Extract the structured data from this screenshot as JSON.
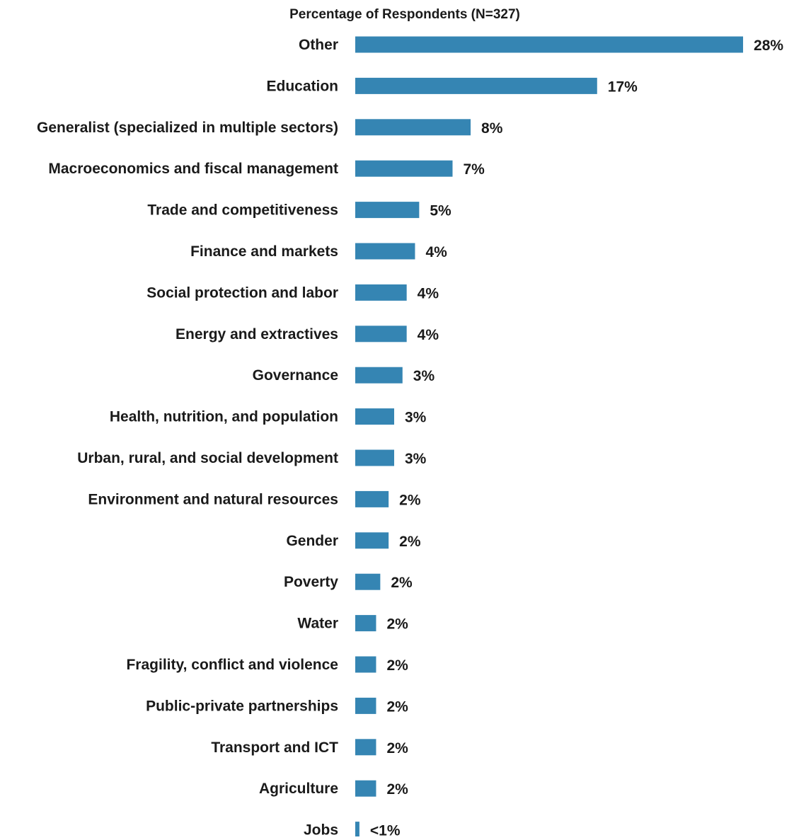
{
  "chart_data": {
    "type": "bar",
    "orientation": "horizontal",
    "title": "Percentage of Respondents (N=327)",
    "xlabel": "",
    "ylabel": "",
    "categories": [
      "Other",
      "Education",
      "Generalist (specialized in multiple sectors)",
      "Macroeconomics and fiscal management",
      "Trade and competitiveness",
      "Finance and markets",
      "Social protection and labor",
      "Energy and extractives",
      "Governance",
      "Health, nutrition, and population",
      "Urban, rural, and social development",
      "Environment and natural resources",
      "Gender",
      "Poverty",
      "Water",
      "Fragility, conflict and violence",
      "Public-private partnerships",
      "Transport and ICT",
      "Agriculture",
      "Jobs"
    ],
    "values": [
      27.9,
      17.4,
      8.3,
      7.0,
      4.6,
      4.3,
      3.7,
      3.7,
      3.4,
      2.8,
      2.8,
      2.4,
      2.4,
      1.8,
      1.5,
      1.5,
      1.5,
      1.5,
      1.5,
      0.3
    ],
    "data_labels": [
      "28%",
      "17%",
      "8%",
      "7%",
      "5%",
      "4%",
      "4%",
      "4%",
      "3%",
      "3%",
      "3%",
      "2%",
      "2%",
      "2%",
      "2%",
      "2%",
      "2%",
      "2%",
      "2%",
      "<1%"
    ],
    "xlim": [
      0,
      28
    ],
    "grid": false,
    "legend": "none",
    "bar_color": "#3585b3",
    "label_color": "#1a1a1a"
  }
}
